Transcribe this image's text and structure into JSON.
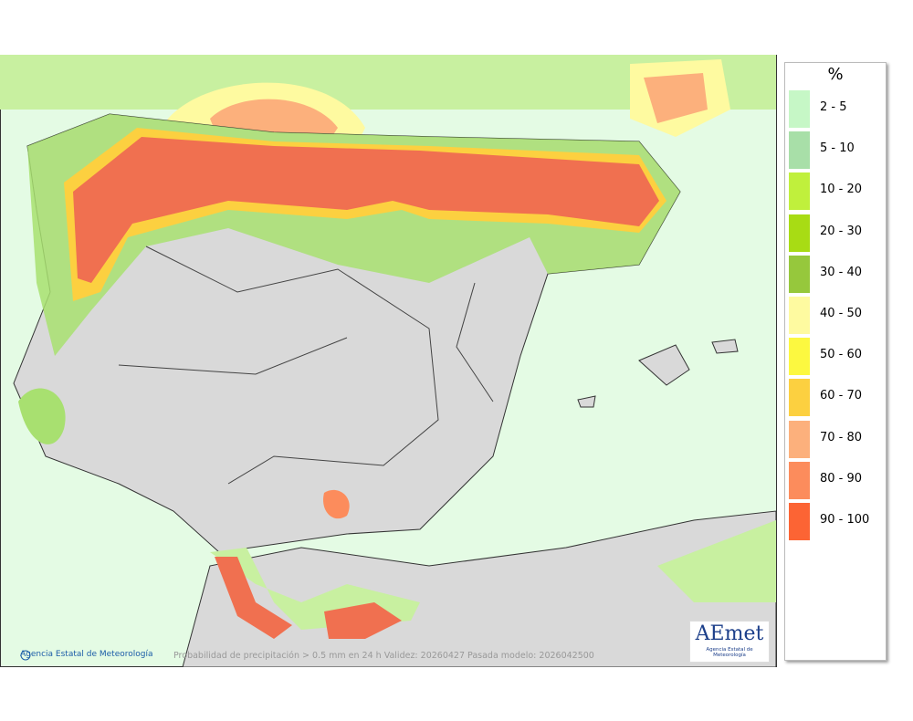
{
  "legend": {
    "title": "%",
    "items": [
      {
        "label": "2 - 5",
        "color": "#c6f7c6"
      },
      {
        "label": "5 - 10",
        "color": "#a8dfa8"
      },
      {
        "label": "10 - 20",
        "color": "#c0f03c"
      },
      {
        "label": "20 - 30",
        "color": "#a8dc14"
      },
      {
        "label": "30 - 40",
        "color": "#96c83c"
      },
      {
        "label": "40 - 50",
        "color": "#fefaa0"
      },
      {
        "label": "50 - 60",
        "color": "#fcf840"
      },
      {
        "label": "60 - 70",
        "color": "#fcd040"
      },
      {
        "label": "70 - 80",
        "color": "#fcb07c"
      },
      {
        "label": "80 - 90",
        "color": "#fc8c5c"
      },
      {
        "label": "90 - 100",
        "color": "#fc6434"
      }
    ]
  },
  "footer": {
    "credit": "Agencia Estatal de Meteorología",
    "caption": "Probabilidad de precipitación > 0.5 mm en 24 h Validez: 20260427 Pasada modelo: 2026042500"
  },
  "logo": {
    "name": "AEmet",
    "subtitle": "Agencia Estatal de Meteorología"
  }
}
